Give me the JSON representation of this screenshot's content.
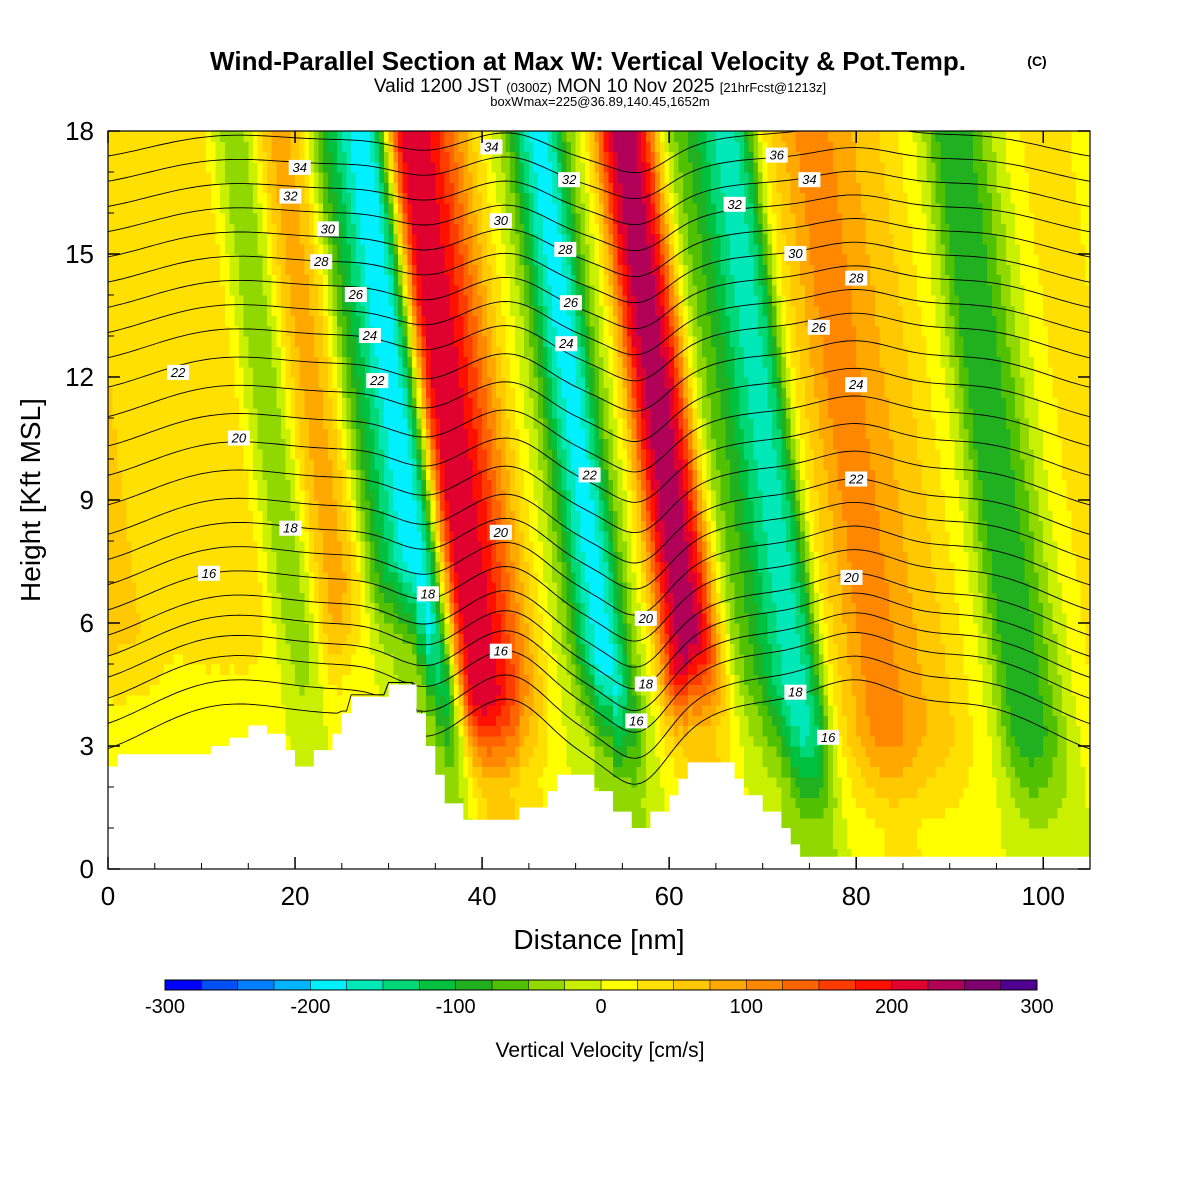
{
  "chart_data": {
    "type": "heatmap",
    "title": "Wind-Parallel Section at Max W: Vertical Velocity & Pot.Temp.",
    "title_mark": "(C)",
    "subtitle_parts": [
      "Valid 1200 JST",
      "(0300Z)",
      "MON 10 Nov 2025",
      "[21hrFcst@1213z]"
    ],
    "subtitle2": "boxWmax=225@36.89,140.45,1652m",
    "xlabel": "Distance [nm]",
    "ylabel": "Height [Kft MSL]",
    "xlim": [
      0,
      105
    ],
    "ylim": [
      0,
      18
    ],
    "x_ticks": [
      0,
      20,
      40,
      60,
      80,
      100
    ],
    "x_tick_labels": [
      "0",
      "20",
      "40",
      "60",
      "80",
      "100"
    ],
    "y_ticks": [
      0,
      3,
      6,
      9,
      12,
      15,
      18
    ],
    "y_tick_labels": [
      "0",
      "3",
      "6",
      "9",
      "12",
      "15",
      "18"
    ],
    "colorbar": {
      "label": "Vertical Velocity [cm/s]",
      "min": -300,
      "max": 300,
      "step": 25,
      "tick_values": [
        -300,
        -200,
        -100,
        0,
        100,
        200,
        300
      ],
      "tick_labels": [
        "-300",
        "-200",
        "-100",
        "0",
        "100",
        "200",
        "300"
      ],
      "colors": [
        "#0000ff",
        "#0050f5",
        "#0080ff",
        "#00b4ff",
        "#00f0ff",
        "#00e8b8",
        "#00d878",
        "#00c040",
        "#20b020",
        "#50c000",
        "#90d800",
        "#c8f000",
        "#ffff00",
        "#ffe000",
        "#ffc800",
        "#ffa800",
        "#ff8800",
        "#ff6400",
        "#ff3c00",
        "#ff1000",
        "#e00030",
        "#b00058",
        "#800070",
        "#500090"
      ]
    },
    "velocity_bands": [
      {
        "x": 0,
        "w": 0,
        "v": 60
      },
      {
        "x": 8,
        "w": 6,
        "v": 30
      },
      {
        "x": 14,
        "w": 5,
        "v": 60
      },
      {
        "x": 18,
        "w": 2.2,
        "v": -110
      },
      {
        "x": 24,
        "w": 4,
        "v": 90
      },
      {
        "x": 28.5,
        "w": 2.6,
        "v": -150
      },
      {
        "x": 32.5,
        "w": 2.2,
        "v": -240
      },
      {
        "x": 37.5,
        "w": 3.2,
        "v": 280
      },
      {
        "x": 42,
        "w": 5,
        "v": 120
      },
      {
        "x": 46,
        "w": 3,
        "v": -60
      },
      {
        "x": 50.5,
        "w": 2.8,
        "v": -220
      },
      {
        "x": 55,
        "w": 2.5,
        "v": -30
      },
      {
        "x": 60,
        "w": 3.5,
        "v": 250
      },
      {
        "x": 66,
        "w": 3,
        "v": -70
      },
      {
        "x": 71,
        "w": 3,
        "v": -170
      },
      {
        "x": 76,
        "w": 2.5,
        "v": 40
      },
      {
        "x": 79.5,
        "w": 3.5,
        "v": 130
      },
      {
        "x": 85,
        "w": 4,
        "v": 70
      },
      {
        "x": 90,
        "w": 3,
        "v": 20
      },
      {
        "x": 96,
        "w": 4,
        "v": -120
      },
      {
        "x": 101,
        "w": 4,
        "v": 30
      },
      {
        "x": 105,
        "w": 0,
        "v": 40
      }
    ],
    "terrain_kft": [
      [
        0,
        2.5
      ],
      [
        1,
        2.5
      ],
      [
        1,
        2.8
      ],
      [
        11,
        2.8
      ],
      [
        11,
        3.0
      ],
      [
        13,
        3.0
      ],
      [
        13,
        3.2
      ],
      [
        15,
        3.2
      ],
      [
        15,
        3.5
      ],
      [
        17,
        3.5
      ],
      [
        17,
        3.3
      ],
      [
        19,
        3.3
      ],
      [
        19,
        2.9
      ],
      [
        20,
        2.9
      ],
      [
        20,
        2.5
      ],
      [
        22,
        2.5
      ],
      [
        22,
        2.9
      ],
      [
        24,
        2.9
      ],
      [
        24,
        3.3
      ],
      [
        25,
        3.3
      ],
      [
        25,
        3.8
      ],
      [
        26,
        3.8
      ],
      [
        26,
        4.2
      ],
      [
        30,
        4.2
      ],
      [
        30,
        4.5
      ],
      [
        33,
        4.5
      ],
      [
        33,
        3.8
      ],
      [
        34,
        3.8
      ],
      [
        34,
        3.0
      ],
      [
        35,
        3.0
      ],
      [
        35,
        2.3
      ],
      [
        36,
        2.3
      ],
      [
        36,
        1.6
      ],
      [
        38,
        1.6
      ],
      [
        38,
        1.2
      ],
      [
        44,
        1.2
      ],
      [
        44,
        1.5
      ],
      [
        47,
        1.5
      ],
      [
        47,
        1.9
      ],
      [
        48,
        1.9
      ],
      [
        48,
        2.3
      ],
      [
        52,
        2.3
      ],
      [
        52,
        1.9
      ],
      [
        54,
        1.9
      ],
      [
        54,
        1.4
      ],
      [
        56,
        1.4
      ],
      [
        56,
        1.0
      ],
      [
        58,
        1.0
      ],
      [
        58,
        1.4
      ],
      [
        60,
        1.4
      ],
      [
        60,
        1.8
      ],
      [
        61,
        1.8
      ],
      [
        61,
        2.2
      ],
      [
        62,
        2.2
      ],
      [
        62,
        2.6
      ],
      [
        67,
        2.6
      ],
      [
        67,
        2.2
      ],
      [
        68,
        2.2
      ],
      [
        68,
        1.8
      ],
      [
        70,
        1.8
      ],
      [
        70,
        1.4
      ],
      [
        72,
        1.4
      ],
      [
        72,
        1.0
      ],
      [
        73,
        1.0
      ],
      [
        73,
        0.6
      ],
      [
        74,
        0.6
      ],
      [
        74,
        0.3
      ],
      [
        105,
        0.3
      ]
    ],
    "theta_contours": [
      {
        "v": 14,
        "base": 3.6
      },
      {
        "v": 16,
        "base": 4.2
      },
      {
        "v": 17,
        "base": 4.8
      },
      {
        "v": 18,
        "base": 5.3
      },
      {
        "v": 19,
        "base": 5.8
      },
      {
        "v": 20,
        "base": 6.3
      },
      {
        "v": 21,
        "base": 6.9
      },
      {
        "v": 22,
        "base": 7.5
      },
      {
        "v": 23,
        "base": 8.1
      },
      {
        "v": 24,
        "base": 8.7
      },
      {
        "v": 25,
        "base": 9.4
      },
      {
        "v": 26,
        "base": 10.1
      },
      {
        "v": 27,
        "base": 10.8
      },
      {
        "v": 28,
        "base": 11.5
      },
      {
        "v": 29,
        "base": 12.2
      },
      {
        "v": 30,
        "base": 12.9
      },
      {
        "v": 31,
        "base": 13.5
      },
      {
        "v": 32,
        "base": 14.1
      },
      {
        "v": 33,
        "base": 14.7
      },
      {
        "v": 34,
        "base": 15.3
      },
      {
        "v": 35,
        "base": 15.9
      },
      {
        "v": 36,
        "base": 16.5
      },
      {
        "v": 37,
        "base": 17.1
      },
      {
        "v": 38,
        "base": 17.7
      }
    ],
    "contour_labels": [
      {
        "text": "34",
        "x": 20.5,
        "y": 17.1
      },
      {
        "text": "32",
        "x": 19.5,
        "y": 16.4
      },
      {
        "text": "30",
        "x": 23.5,
        "y": 15.6
      },
      {
        "text": "28",
        "x": 22.8,
        "y": 14.8
      },
      {
        "text": "26",
        "x": 26.5,
        "y": 14.0
      },
      {
        "text": "24",
        "x": 28.0,
        "y": 13.0
      },
      {
        "text": "22",
        "x": 28.8,
        "y": 11.9
      },
      {
        "text": "22",
        "x": 7.5,
        "y": 12.1
      },
      {
        "text": "20",
        "x": 14.0,
        "y": 10.5
      },
      {
        "text": "18",
        "x": 19.5,
        "y": 8.3
      },
      {
        "text": "16",
        "x": 10.8,
        "y": 7.2
      },
      {
        "text": "18",
        "x": 34.2,
        "y": 6.7
      },
      {
        "text": "34",
        "x": 41.0,
        "y": 17.6
      },
      {
        "text": "30",
        "x": 42.0,
        "y": 15.8
      },
      {
        "text": "20",
        "x": 42.0,
        "y": 8.2
      },
      {
        "text": "16",
        "x": 42.0,
        "y": 5.3
      },
      {
        "text": "32",
        "x": 49.3,
        "y": 16.8
      },
      {
        "text": "28",
        "x": 48.9,
        "y": 15.1
      },
      {
        "text": "26",
        "x": 49.5,
        "y": 13.8
      },
      {
        "text": "24",
        "x": 49.0,
        "y": 12.8
      },
      {
        "text": "22",
        "x": 51.5,
        "y": 9.6
      },
      {
        "text": "20",
        "x": 57.5,
        "y": 6.1
      },
      {
        "text": "18",
        "x": 57.5,
        "y": 4.5
      },
      {
        "text": "16",
        "x": 56.5,
        "y": 3.6
      },
      {
        "text": "36",
        "x": 71.5,
        "y": 17.4
      },
      {
        "text": "34",
        "x": 75.0,
        "y": 16.8
      },
      {
        "text": "32",
        "x": 67.0,
        "y": 16.2
      },
      {
        "text": "30",
        "x": 73.5,
        "y": 15.0
      },
      {
        "text": "28",
        "x": 80.0,
        "y": 14.4
      },
      {
        "text": "26",
        "x": 76.0,
        "y": 13.2
      },
      {
        "text": "24",
        "x": 80.0,
        "y": 11.8
      },
      {
        "text": "22",
        "x": 80.0,
        "y": 9.5
      },
      {
        "text": "20",
        "x": 79.5,
        "y": 7.1
      },
      {
        "text": "18",
        "x": 73.5,
        "y": 4.3
      },
      {
        "text": "16",
        "x": 77.0,
        "y": 3.2
      }
    ]
  }
}
